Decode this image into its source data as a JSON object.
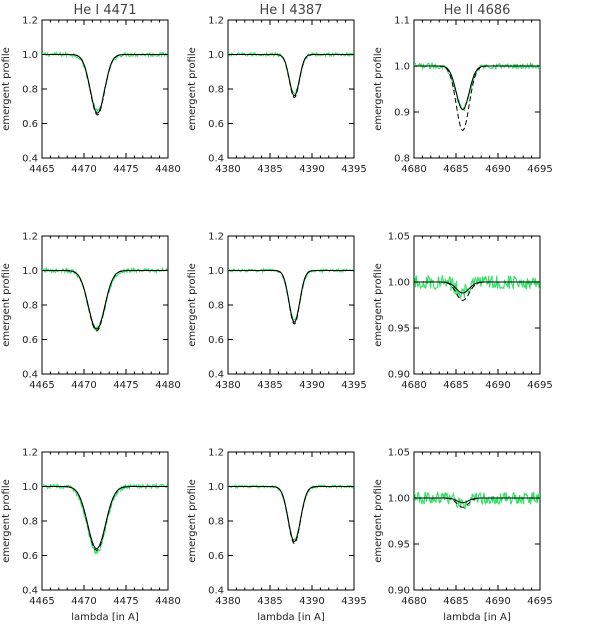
{
  "figure": {
    "column_titles": [
      "He I 4471",
      "He I 4387",
      "He II 4686"
    ],
    "ylabel": "emergent profile",
    "xlabel": "lambda [in A]"
  },
  "colors": {
    "axes": "#000000",
    "model_solid": "#000000",
    "model_dashed": "#000000",
    "observed": "#33e066"
  },
  "chart_data": [
    {
      "type": "line",
      "title": "He I 4471",
      "row": 1,
      "col": 1,
      "x_range": [
        4465,
        4480
      ],
      "xticks": [
        4465,
        4470,
        4475,
        4480
      ],
      "y_range": [
        0.4,
        1.2
      ],
      "yticks": [
        0.4,
        0.6,
        0.8,
        1.0,
        1.2
      ],
      "ytick_decimals": 1,
      "show_xlabel": false,
      "grid": false,
      "line_center": 4471.6,
      "fwhm": 2.0,
      "depth_solid": 0.34,
      "depth_dashed": 0.35,
      "observed_noise": 0.012,
      "observed_depth": 0.33
    },
    {
      "type": "line",
      "title": "He I 4387",
      "row": 1,
      "col": 2,
      "x_range": [
        4380,
        4395
      ],
      "xticks": [
        4380,
        4385,
        4390,
        4395
      ],
      "y_range": [
        0.4,
        1.2
      ],
      "yticks": [
        0.4,
        0.6,
        0.8,
        1.0,
        1.2
      ],
      "ytick_decimals": 1,
      "show_xlabel": false,
      "grid": false,
      "line_center": 4387.9,
      "fwhm": 1.4,
      "depth_solid": 0.24,
      "depth_dashed": 0.25,
      "observed_noise": 0.01,
      "observed_depth": 0.23
    },
    {
      "type": "line",
      "title": "He II 4686",
      "row": 1,
      "col": 3,
      "x_range": [
        4680,
        4695
      ],
      "xticks": [
        4680,
        4685,
        4690,
        4695
      ],
      "y_range": [
        0.8,
        1.1
      ],
      "yticks": [
        0.8,
        0.9,
        1.0,
        1.1
      ],
      "ytick_decimals": 1,
      "show_xlabel": false,
      "grid": false,
      "line_center": 4685.8,
      "fwhm": 1.8,
      "depth_solid": 0.095,
      "depth_dashed": 0.14,
      "observed_noise": 0.006,
      "observed_depth": 0.095
    },
    {
      "type": "line",
      "title": "",
      "row": 2,
      "col": 1,
      "x_range": [
        4465,
        4480
      ],
      "xticks": [
        4465,
        4470,
        4475,
        4480
      ],
      "y_range": [
        0.4,
        1.2
      ],
      "yticks": [
        0.4,
        0.6,
        0.8,
        1.0,
        1.2
      ],
      "ytick_decimals": 1,
      "show_xlabel": false,
      "grid": false,
      "line_center": 4471.5,
      "fwhm": 2.3,
      "depth_solid": 0.34,
      "depth_dashed": 0.35,
      "observed_noise": 0.012,
      "observed_depth": 0.34
    },
    {
      "type": "line",
      "title": "",
      "row": 2,
      "col": 2,
      "x_range": [
        4380,
        4395
      ],
      "xticks": [
        4380,
        4385,
        4390,
        4395
      ],
      "y_range": [
        0.4,
        1.2
      ],
      "yticks": [
        0.4,
        0.6,
        0.8,
        1.0,
        1.2
      ],
      "ytick_decimals": 1,
      "show_xlabel": false,
      "grid": false,
      "line_center": 4387.9,
      "fwhm": 1.5,
      "depth_solid": 0.3,
      "depth_dashed": 0.31,
      "observed_noise": 0.008,
      "observed_depth": 0.29
    },
    {
      "type": "line",
      "title": "",
      "row": 2,
      "col": 3,
      "x_range": [
        4680,
        4695
      ],
      "xticks": [
        4680,
        4685,
        4690,
        4695
      ],
      "y_range": [
        0.9,
        1.05
      ],
      "yticks": [
        0.9,
        0.95,
        1.0,
        1.05
      ],
      "ytick_decimals": 2,
      "show_xlabel": false,
      "grid": false,
      "line_center": 4685.8,
      "fwhm": 1.8,
      "depth_solid": 0.012,
      "depth_dashed": 0.02,
      "observed_noise": 0.008,
      "observed_depth": 0.01
    },
    {
      "type": "line",
      "title": "",
      "row": 3,
      "col": 1,
      "x_range": [
        4465,
        4480
      ],
      "xticks": [
        4465,
        4470,
        4475,
        4480
      ],
      "y_range": [
        0.4,
        1.2
      ],
      "yticks": [
        0.4,
        0.6,
        0.8,
        1.0,
        1.2
      ],
      "ytick_decimals": 1,
      "show_xlabel": true,
      "grid": false,
      "line_center": 4471.5,
      "fwhm": 2.5,
      "depth_solid": 0.36,
      "depth_dashed": 0.37,
      "observed_noise": 0.012,
      "observed_depth": 0.38
    },
    {
      "type": "line",
      "title": "",
      "row": 3,
      "col": 2,
      "x_range": [
        4380,
        4395
      ],
      "xticks": [
        4380,
        4385,
        4390,
        4395
      ],
      "y_range": [
        0.4,
        1.2
      ],
      "yticks": [
        0.4,
        0.6,
        0.8,
        1.0,
        1.2
      ],
      "ytick_decimals": 1,
      "show_xlabel": true,
      "grid": false,
      "line_center": 4387.9,
      "fwhm": 1.7,
      "depth_solid": 0.32,
      "depth_dashed": 0.33,
      "observed_noise": 0.008,
      "observed_depth": 0.31
    },
    {
      "type": "line",
      "title": "",
      "row": 3,
      "col": 3,
      "x_range": [
        4680,
        4695
      ],
      "xticks": [
        4680,
        4685,
        4690,
        4695
      ],
      "y_range": [
        0.9,
        1.05
      ],
      "yticks": [
        0.9,
        0.95,
        1.0,
        1.05
      ],
      "ytick_decimals": 2,
      "show_xlabel": true,
      "grid": false,
      "line_center": 4685.8,
      "fwhm": 1.6,
      "depth_solid": 0.005,
      "depth_dashed": 0.01,
      "observed_noise": 0.007,
      "observed_depth": 0.005
    }
  ]
}
